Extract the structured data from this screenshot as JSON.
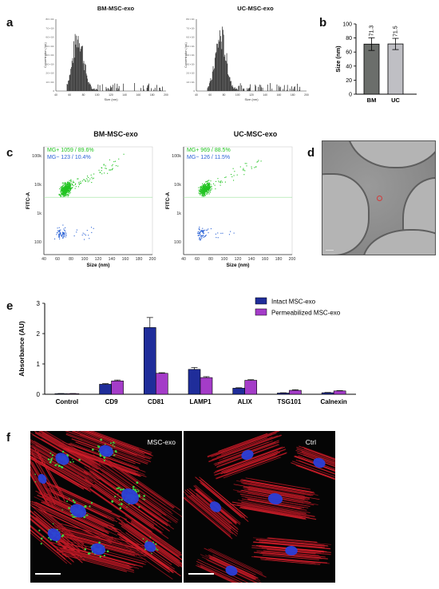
{
  "panels": {
    "a": {
      "letter": "a",
      "left_title": "BM-MSC-exo",
      "right_title": "UC-MSC-exo",
      "xlabel": "Size (nm)",
      "ylabel": "Concentration (/mL)"
    },
    "b": {
      "letter": "b"
    },
    "c": {
      "letter": "c",
      "left_title": "BM-MSC-exo",
      "right_title": "UC-MSC-exo"
    },
    "d": {
      "letter": "d"
    },
    "e": {
      "letter": "e"
    },
    "f": {
      "letter": "f",
      "left_label": "MSC-exo",
      "right_label": "Ctrl"
    }
  },
  "chart_data": [
    {
      "id": "a-left",
      "type": "bar",
      "title": "BM-MSC-exo",
      "xlabel": "Size (nm)",
      "ylabel": "Concentration (/mL)",
      "xlim": [
        40,
        200
      ],
      "x_ticks": [
        40,
        60,
        80,
        100,
        120,
        140,
        160,
        180,
        200
      ],
      "y_ticks": [
        "0",
        "1.0 × 10⁸",
        "2.0 × 10⁸",
        "3.0 × 10⁸",
        "4.0 × 10⁸",
        "5.0 × 10⁸",
        "6.0 × 10⁸",
        "7.0 × 10⁸",
        "8.0 × 10⁸"
      ],
      "ylim": [
        0,
        8
      ]
    },
    {
      "id": "a-right",
      "type": "bar",
      "title": "UC-MSC-exo",
      "xlabel": "Size (nm)",
      "ylabel": "Concentration (/mL)",
      "xlim": [
        40,
        200
      ],
      "x_ticks": [
        40,
        60,
        80,
        100,
        120,
        140,
        160,
        180,
        200
      ],
      "y_ticks": [
        "0",
        "1.0 × 10⁸",
        "2.0 × 10⁸",
        "3.0 × 10⁸",
        "4.0 × 10⁸",
        "5.0 × 10⁸",
        "6.0 × 10⁸",
        "7.0 × 10⁸",
        "8.0 × 10⁸"
      ],
      "ylim": [
        0,
        8
      ]
    },
    {
      "id": "b",
      "type": "bar",
      "categories": [
        "BM",
        "UC"
      ],
      "values": [
        71.3,
        71.5
      ],
      "errors": [
        9,
        8
      ],
      "value_labels": [
        "71.3",
        "71.5"
      ],
      "colors": [
        "#6b6e6b",
        "#bfbfc4"
      ],
      "ylabel": "Size (nm)",
      "ylim": [
        0,
        100
      ],
      "y_ticks": [
        0,
        20,
        40,
        60,
        80,
        100
      ]
    },
    {
      "id": "c-left",
      "type": "scatter",
      "title": "BM-MSC-exo",
      "xlabel": "Size (nm)",
      "ylabel": "FITC-A",
      "xlim": [
        40,
        200
      ],
      "x_ticks": [
        40,
        60,
        80,
        100,
        120,
        140,
        160,
        180,
        200
      ],
      "y_ticks": [
        "100",
        "1k",
        "10k",
        "100k"
      ],
      "threshold": "3.5k",
      "gates": [
        {
          "label": "MG+ 1059 / 89.6%",
          "color": "#22c422"
        },
        {
          "label": "MG− 123 / 10.4%",
          "color": "#2a62d6"
        }
      ]
    },
    {
      "id": "c-right",
      "type": "scatter",
      "title": "UC-MSC-exo",
      "xlabel": "Size (nm)",
      "ylabel": "FITC-A",
      "xlim": [
        40,
        200
      ],
      "x_ticks": [
        40,
        60,
        80,
        100,
        120,
        140,
        160,
        180,
        200
      ],
      "y_ticks": [
        "100",
        "1k",
        "10k",
        "100k"
      ],
      "threshold": "3.5k",
      "gates": [
        {
          "label": "MG+ 969 / 88.5%",
          "color": "#22c422"
        },
        {
          "label": "MG− 126 / 11.5%",
          "color": "#2a62d6"
        }
      ]
    },
    {
      "id": "e",
      "type": "bar",
      "categories": [
        "Control",
        "CD9",
        "CD81",
        "LAMP1",
        "ALIX",
        "TSG101",
        "Calnexin"
      ],
      "series": [
        {
          "name": "Intact MSC-exo",
          "color": "#1f2d9a",
          "values": [
            0.02,
            0.33,
            2.2,
            0.82,
            0.2,
            0.04,
            0.05
          ],
          "errors": [
            0.005,
            0.02,
            0.33,
            0.06,
            0.015,
            0.01,
            0.01
          ]
        },
        {
          "name": "Permeabilized MSC-exo",
          "color": "#a43cc8",
          "values": [
            0.02,
            0.44,
            0.69,
            0.55,
            0.46,
            0.13,
            0.11
          ],
          "errors": [
            0.005,
            0.03,
            0.02,
            0.03,
            0.02,
            0.02,
            0.01
          ]
        }
      ],
      "ylabel": "Absorbance (AU)",
      "ylim": [
        0,
        3
      ],
      "y_ticks": [
        0,
        1,
        2,
        3
      ],
      "legend": "top-right"
    }
  ]
}
